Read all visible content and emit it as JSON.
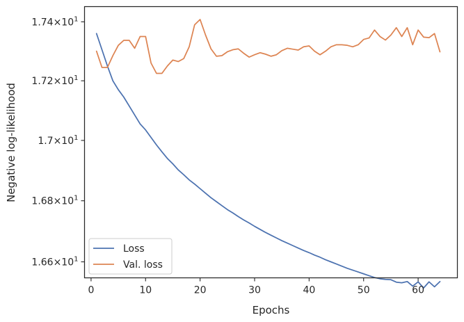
{
  "chart_data": {
    "type": "line",
    "xlabel": "Epochs",
    "ylabel": "Negative log-likelihood",
    "xlim": [
      -1.2,
      67.2
    ],
    "ylim": [
      16.548,
      17.452
    ],
    "y_scale": "log",
    "x_ticks": [
      0,
      10,
      20,
      30,
      40,
      50,
      60
    ],
    "x_tick_labels": [
      "0",
      "10",
      "20",
      "30",
      "40",
      "50",
      "60"
    ],
    "y_ticks": [
      16.6,
      16.8,
      17.0,
      17.2,
      17.4
    ],
    "y_tick_labels": [
      {
        "mantissa": "1.66",
        "base": "10",
        "exp": "1"
      },
      {
        "mantissa": "1.68",
        "base": "10",
        "exp": "1"
      },
      {
        "mantissa": "1.7",
        "base": "10",
        "exp": "1"
      },
      {
        "mantissa": "1.72",
        "base": "10",
        "exp": "1"
      },
      {
        "mantissa": "1.74",
        "base": "10",
        "exp": "1"
      }
    ],
    "grid": false,
    "legend_position": "lower-left",
    "series": [
      {
        "name": "Loss",
        "color": "#4c72b0",
        "x": [
          1,
          2,
          3,
          4,
          5,
          6,
          7,
          8,
          9,
          10,
          11,
          12,
          13,
          14,
          15,
          16,
          17,
          18,
          19,
          20,
          21,
          22,
          23,
          24,
          25,
          26,
          27,
          28,
          29,
          30,
          31,
          32,
          33,
          34,
          35,
          36,
          37,
          38,
          39,
          40,
          41,
          42,
          43,
          44,
          45,
          46,
          47,
          48,
          49,
          50,
          51,
          52,
          53,
          54,
          55,
          56,
          57,
          58,
          59,
          60,
          61,
          62,
          63,
          64
        ],
        "values": [
          17.36,
          17.305,
          17.25,
          17.2,
          17.17,
          17.145,
          17.115,
          17.085,
          17.055,
          17.035,
          17.01,
          16.985,
          16.962,
          16.94,
          16.922,
          16.902,
          16.886,
          16.869,
          16.855,
          16.84,
          16.825,
          16.81,
          16.797,
          16.784,
          16.771,
          16.76,
          16.748,
          16.737,
          16.727,
          16.716,
          16.706,
          16.696,
          16.687,
          16.678,
          16.669,
          16.661,
          16.653,
          16.645,
          16.637,
          16.63,
          16.622,
          16.615,
          16.607,
          16.6,
          16.593,
          16.586,
          16.579,
          16.573,
          16.567,
          16.561,
          16.555,
          16.549,
          16.545,
          16.543,
          16.542,
          16.534,
          16.532,
          16.536,
          16.521,
          16.535,
          16.515,
          16.535,
          16.519,
          16.536
        ]
      },
      {
        "name": "Val. loss",
        "color": "#dd8452",
        "x": [
          1,
          2,
          3,
          4,
          5,
          6,
          7,
          8,
          9,
          10,
          11,
          12,
          13,
          14,
          15,
          16,
          17,
          18,
          19,
          20,
          21,
          22,
          23,
          24,
          25,
          26,
          27,
          28,
          29,
          30,
          31,
          32,
          33,
          34,
          35,
          36,
          37,
          38,
          39,
          40,
          41,
          42,
          43,
          44,
          45,
          46,
          47,
          48,
          49,
          50,
          51,
          52,
          53,
          54,
          55,
          56,
          57,
          58,
          59,
          60,
          61,
          62,
          63,
          64
        ],
        "values": [
          17.3,
          17.245,
          17.245,
          17.285,
          17.32,
          17.337,
          17.337,
          17.31,
          17.35,
          17.35,
          17.26,
          17.225,
          17.225,
          17.25,
          17.27,
          17.265,
          17.275,
          17.315,
          17.39,
          17.408,
          17.355,
          17.308,
          17.283,
          17.285,
          17.298,
          17.305,
          17.308,
          17.293,
          17.28,
          17.288,
          17.295,
          17.29,
          17.283,
          17.288,
          17.302,
          17.31,
          17.307,
          17.304,
          17.315,
          17.318,
          17.3,
          17.288,
          17.3,
          17.315,
          17.322,
          17.322,
          17.32,
          17.315,
          17.322,
          17.34,
          17.345,
          17.372,
          17.35,
          17.338,
          17.355,
          17.38,
          17.35,
          17.38,
          17.322,
          17.372,
          17.348,
          17.346,
          17.36,
          17.298
        ]
      }
    ]
  }
}
